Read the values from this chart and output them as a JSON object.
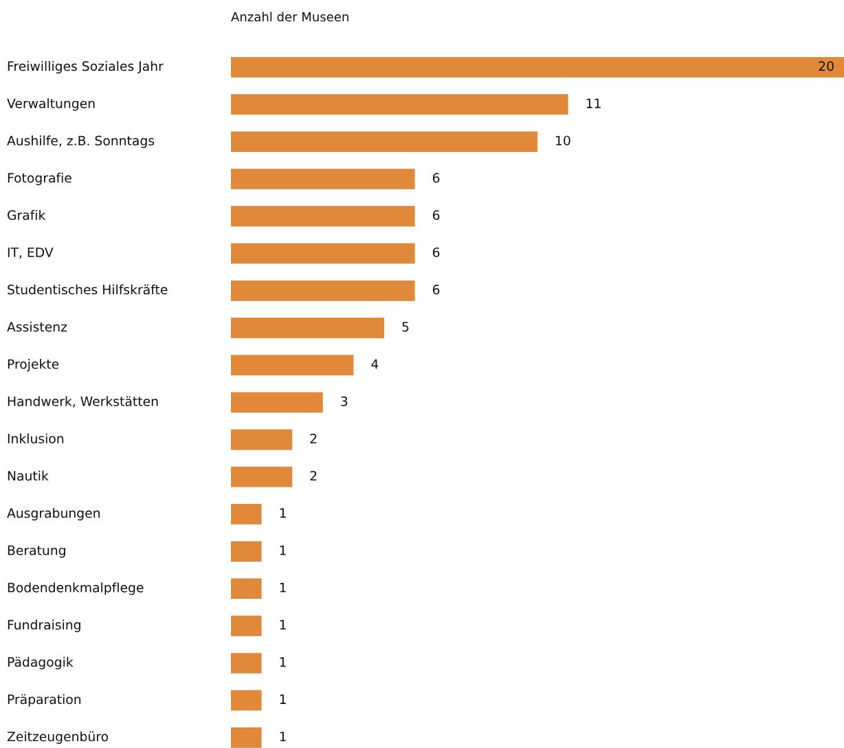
{
  "chart_data": {
    "type": "bar",
    "orientation": "horizontal",
    "title": "Anzahl der Museen",
    "categories": [
      "Freiwilliges Soziales Jahr",
      "Verwaltungen",
      "Aushilfe, z.B. Sonntags",
      "Fotografie",
      "Grafik",
      "IT, EDV",
      "Studentisches Hilfskräfte",
      "Assistenz",
      "Projekte",
      "Handwerk, Werkstätten",
      "Inklusion",
      "Nautik",
      "Ausgrabungen",
      "Beratung",
      "Bodendenkmalpflege",
      "Fundraising",
      "Pädagogik",
      "Präparation",
      "Zeitzeugenbüro"
    ],
    "values": [
      20,
      11,
      10,
      6,
      6,
      6,
      6,
      5,
      4,
      3,
      2,
      2,
      1,
      1,
      1,
      1,
      1,
      1,
      1
    ],
    "color": "#e0893b",
    "xlim": [
      0,
      20
    ],
    "data_labels": true,
    "legend": false
  }
}
